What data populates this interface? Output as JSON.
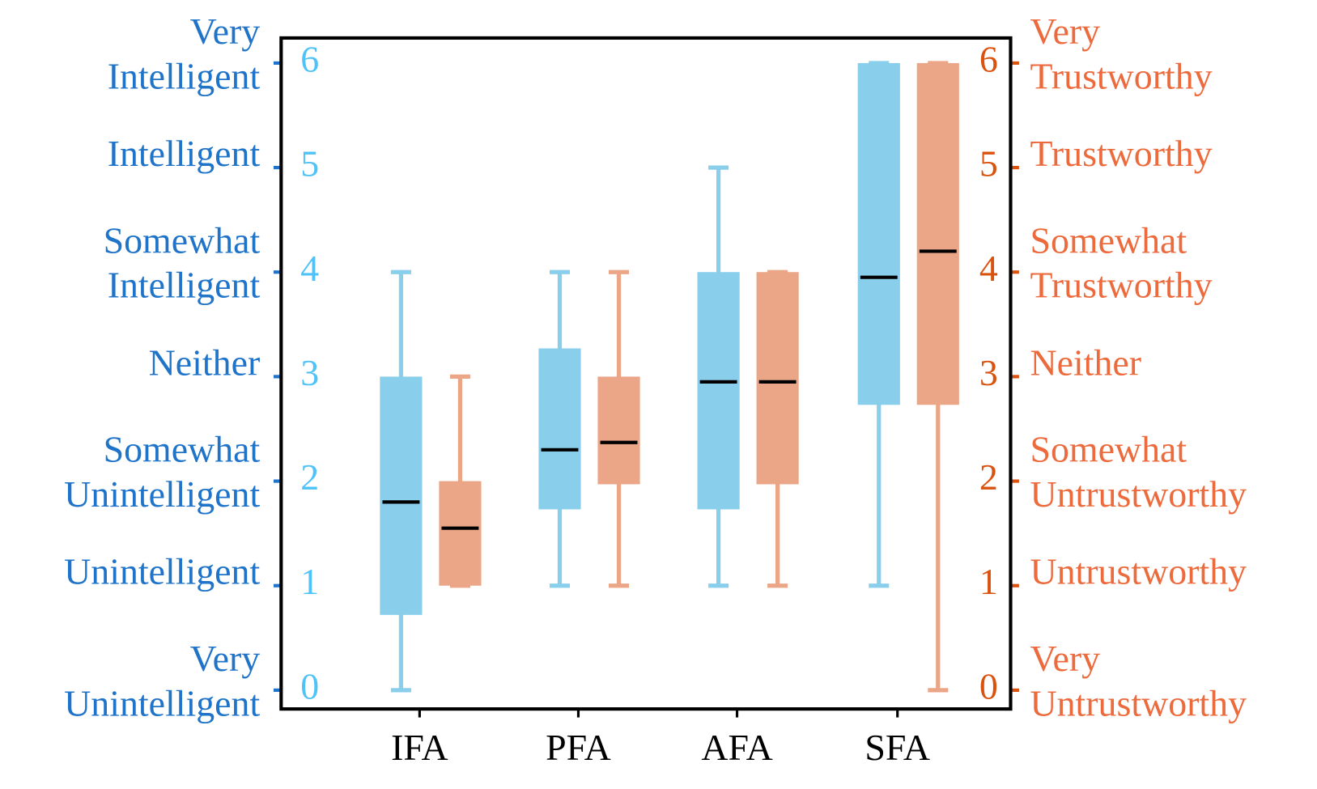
{
  "chart_data": {
    "type": "box",
    "categories": [
      "IFA",
      "PFA",
      "AFA",
      "SFA"
    ],
    "ylim": [
      -0.18,
      6.24
    ],
    "yticks": [
      0,
      1,
      2,
      3,
      4,
      5,
      6
    ],
    "y2lim": [
      -0.18,
      6.24
    ],
    "y2ticks": [
      0,
      1,
      2,
      3,
      4,
      5,
      6
    ],
    "y_category_labels": [
      [
        "Very",
        "Unintelligent"
      ],
      [
        "Unintelligent"
      ],
      [
        "Somewhat",
        "Unintelligent"
      ],
      [
        "Neither"
      ],
      [
        "Somewhat",
        "Intelligent"
      ],
      [
        "Intelligent"
      ],
      [
        "Very",
        "Intelligent"
      ]
    ],
    "y2_category_labels": [
      [
        "Very",
        "Untrustworthy"
      ],
      [
        "Untrustworthy"
      ],
      [
        "Somewhat",
        "Untrustworthy"
      ],
      [
        "Neither"
      ],
      [
        "Somewhat",
        "Trustworthy"
      ],
      [
        "Trustworthy"
      ],
      [
        "Very",
        "Trustworthy"
      ]
    ],
    "y_tick_color": "#4fc3f7",
    "y_label_color": "#1f74c9",
    "y2_tick_color": "#d9530f",
    "y2_label_color": "#ec6a3c",
    "median_color": "#000000",
    "series": [
      {
        "color": "#89cfeb",
        "axis": "y",
        "boxes": [
          {
            "low": 0,
            "q1": 0.72,
            "median": 1.8,
            "q3": 3,
            "high": 4
          },
          {
            "low": 1,
            "q1": 1.73,
            "median": 2.3,
            "q3": 3.27,
            "high": 4
          },
          {
            "low": 1,
            "q1": 1.73,
            "median": 2.95,
            "q3": 4,
            "high": 5
          },
          {
            "low": 1,
            "q1": 2.73,
            "median": 3.95,
            "q3": 6,
            "high": 6
          }
        ]
      },
      {
        "color": "#eba587",
        "axis": "y2",
        "boxes": [
          {
            "low": 1,
            "q1": 1,
            "median": 1.55,
            "q3": 2,
            "high": 3
          },
          {
            "low": 1,
            "q1": 1.97,
            "median": 2.37,
            "q3": 3,
            "high": 4
          },
          {
            "low": 1,
            "q1": 1.97,
            "median": 2.95,
            "q3": 4,
            "high": 4
          },
          {
            "low": 0,
            "q1": 2.73,
            "median": 4.2,
            "q3": 6,
            "high": 6
          }
        ]
      }
    ]
  }
}
